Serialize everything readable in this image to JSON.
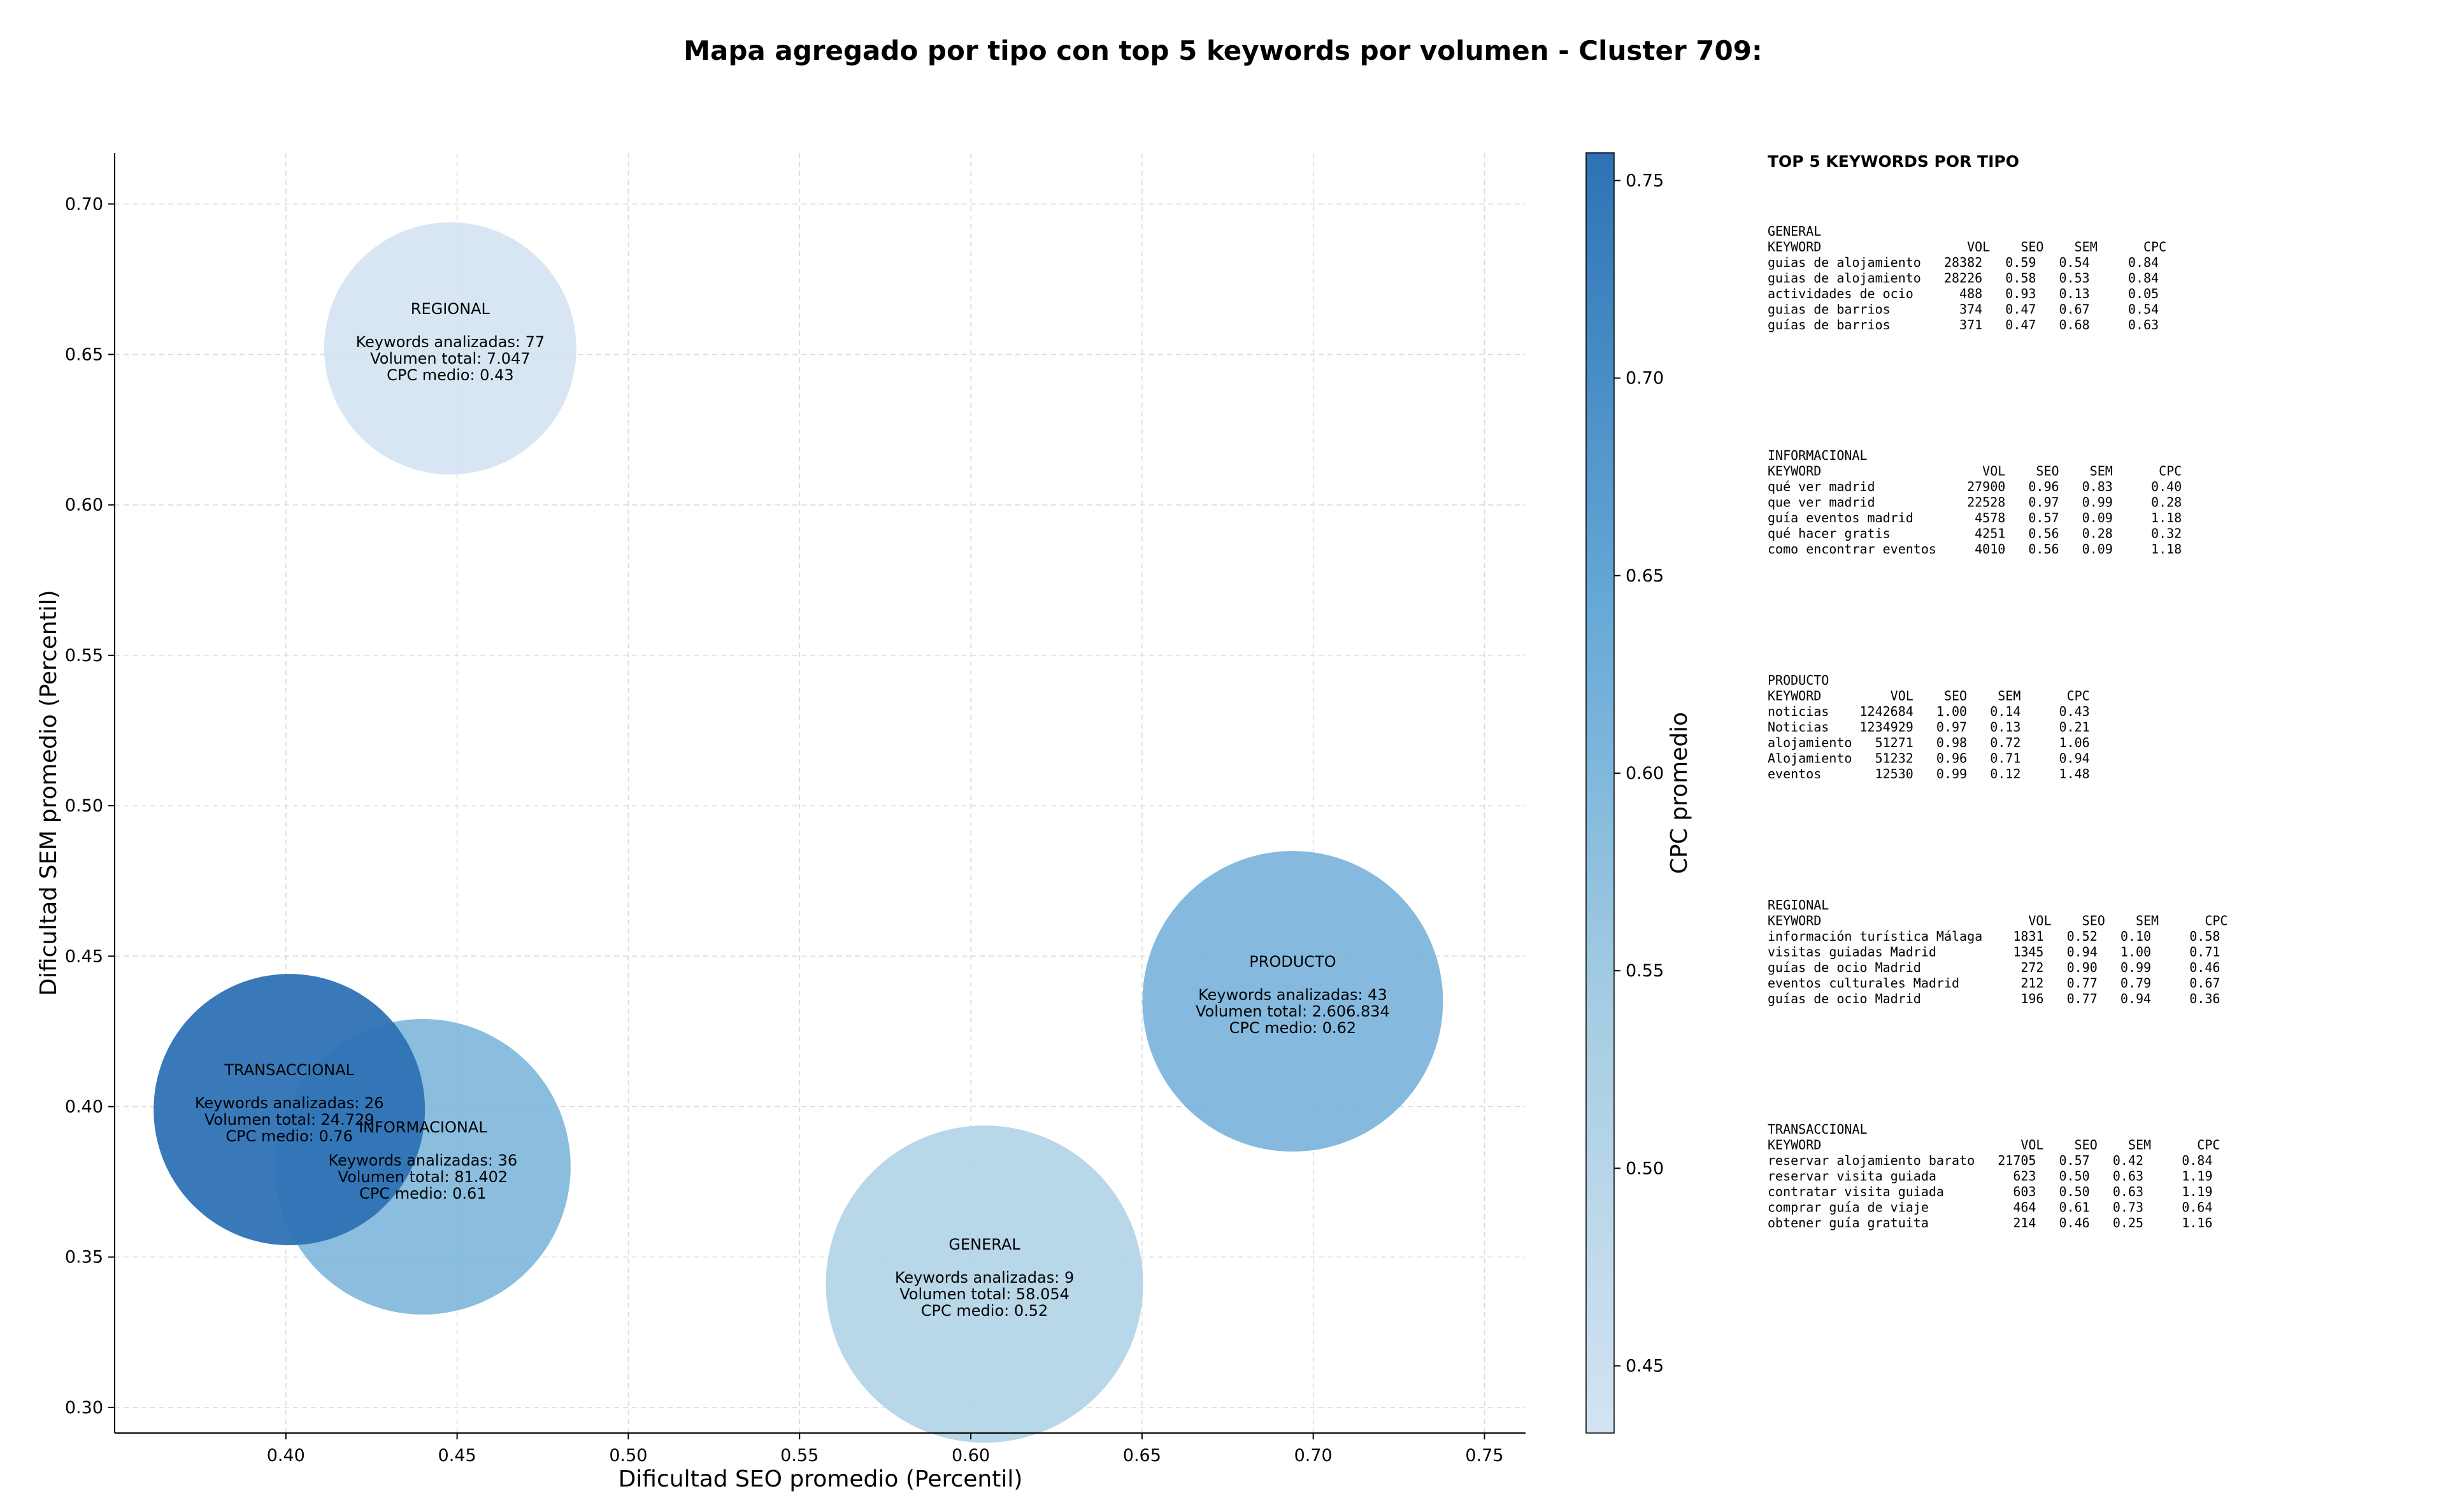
{
  "chart_data": {
    "type": "scatter",
    "title": "Mapa agregado por tipo con top 5 keywords por volumen - Cluster 709:",
    "xlabel": "Dificultad SEO promedio (Percentil)",
    "ylabel": "Dificultad SEM promedio (Percentil)",
    "xlim": [
      0.35,
      0.762
    ],
    "ylim": [
      0.2915,
      0.717
    ],
    "xticks": [
      "0.40",
      "0.45",
      "0.50",
      "0.55",
      "0.60",
      "0.65",
      "0.70",
      "0.75"
    ],
    "yticks": [
      "0.30",
      "0.35",
      "0.40",
      "0.45",
      "0.50",
      "0.55",
      "0.60",
      "0.65",
      "0.70"
    ],
    "grid": true,
    "colorbar": {
      "label": "CPC promedio",
      "range": [
        0.433,
        0.757
      ],
      "ticks": [
        "0.45",
        "0.50",
        "0.55",
        "0.60",
        "0.65",
        "0.70",
        "0.75"
      ]
    },
    "bubbles": [
      {
        "name": "REGIONAL",
        "x": 0.448,
        "y": 0.652,
        "cpc": 0.43,
        "keywords": 77,
        "volume": 7047,
        "lines": [
          "REGIONAL",
          "",
          "Keywords analizadas: 77",
          "Volumen total: 7.047",
          "CPC medio: 0.43"
        ]
      },
      {
        "name": "PRODUCTO",
        "x": 0.694,
        "y": 0.435,
        "cpc": 0.62,
        "keywords": 43,
        "volume": 2606834,
        "lines": [
          "PRODUCTO",
          "",
          "Keywords analizadas: 43",
          "Volumen total: 2.606.834",
          "CPC medio: 0.62"
        ]
      },
      {
        "name": "GENERAL",
        "x": 0.604,
        "y": 0.341,
        "cpc": 0.52,
        "keywords": 9,
        "volume": 58054,
        "lines": [
          "GENERAL",
          "",
          "Keywords analizadas: 9",
          "Volumen total: 58.054",
          "CPC medio: 0.52"
        ]
      },
      {
        "name": "INFORMACIONAL",
        "x": 0.44,
        "y": 0.38,
        "cpc": 0.61,
        "keywords": 36,
        "volume": 81402,
        "lines": [
          "INFORMACIONAL",
          "",
          "Keywords analizadas: 36",
          "Volumen total: 81.402",
          "CPC medio: 0.61"
        ]
      },
      {
        "name": "TRANSACCIONAL",
        "x": 0.401,
        "y": 0.399,
        "cpc": 0.76,
        "keywords": 26,
        "volume": 24729,
        "lines": [
          "TRANSACCIONAL",
          "",
          "Keywords analizadas: 26",
          "Volumen total: 24.729",
          "CPC medio: 0.76"
        ]
      }
    ]
  },
  "side_panel": {
    "title": "TOP 5 KEYWORDS POR TIPO",
    "blocks": [
      {
        "lines": [
          "GENERAL",
          "KEYWORD                   VOL    SEO    SEM      CPC",
          "guias de alojamiento   28382   0.59   0.54     0.84",
          "guias de alojamiento   28226   0.58   0.53     0.84",
          "actividades de ocio      488   0.93   0.13     0.05",
          "guias de barrios         374   0.47   0.67     0.54",
          "guías de barrios         371   0.47   0.68     0.63"
        ]
      },
      {
        "lines": [
          "INFORMACIONAL",
          "KEYWORD                     VOL    SEO    SEM      CPC",
          "qué ver madrid            27900   0.96   0.83     0.40",
          "que ver madrid            22528   0.97   0.99     0.28",
          "guía eventos madrid        4578   0.57   0.09     1.18",
          "qué hacer gratis           4251   0.56   0.28     0.32",
          "como encontrar eventos     4010   0.56   0.09     1.18"
        ]
      },
      {
        "lines": [
          "PRODUCTO",
          "KEYWORD         VOL    SEO    SEM      CPC",
          "noticias    1242684   1.00   0.14     0.43",
          "Noticias    1234929   0.97   0.13     0.21",
          "alojamiento   51271   0.98   0.72     1.06",
          "Alojamiento   51232   0.96   0.71     0.94",
          "eventos       12530   0.99   0.12     1.48"
        ]
      },
      {
        "lines": [
          "REGIONAL",
          "KEYWORD                           VOL    SEO    SEM      CPC",
          "información turística Málaga    1831   0.52   0.10     0.58",
          "visitas guiadas Madrid          1345   0.94   1.00     0.71",
          "guías de ocio Madrid             272   0.90   0.99     0.46",
          "eventos culturales Madrid        212   0.77   0.79     0.67",
          "guías de ocio Madrid             196   0.77   0.94     0.36"
        ]
      },
      {
        "lines": [
          "TRANSACCIONAL",
          "KEYWORD                          VOL    SEO    SEM      CPC",
          "reservar alojamiento barato   21705   0.57   0.42     0.84",
          "reservar visita guiada          623   0.50   0.63     1.19",
          "contratar visita guiada         603   0.50   0.63     1.19",
          "comprar guía de viaje           464   0.61   0.73     0.64",
          "obtener guía gratuita           214   0.46   0.25     1.16"
        ]
      }
    ]
  }
}
